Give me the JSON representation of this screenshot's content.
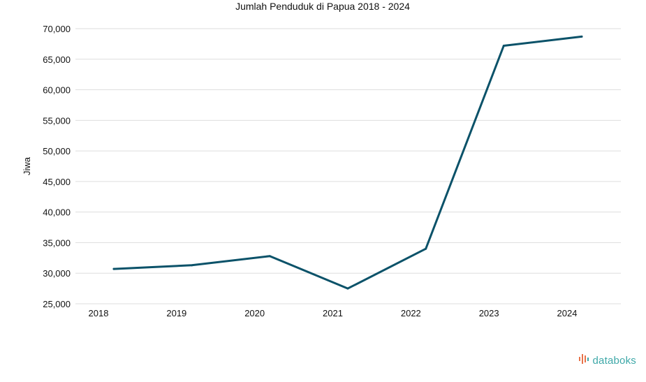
{
  "chart_data": {
    "type": "line",
    "title": "Jumlah Penduduk di Papua 2018 - 2024",
    "xlabel": "",
    "ylabel": "Jiwa",
    "categories": [
      "2018",
      "2019",
      "2020",
      "2021",
      "2022",
      "2023",
      "2024"
    ],
    "series": [
      {
        "values": [
          30700,
          31300,
          32800,
          27500,
          34000,
          67200,
          68700
        ],
        "color": "#0b5269"
      }
    ],
    "ylim": [
      25000,
      70000
    ],
    "yticks": [
      25000,
      30000,
      35000,
      40000,
      45000,
      50000,
      55000,
      60000,
      65000,
      70000
    ],
    "ytick_labels": [
      "25,000",
      "30,000",
      "35,000",
      "40,000",
      "45,000",
      "50,000",
      "55,000",
      "60,000",
      "65,000",
      "70,000"
    ],
    "grid": true,
    "legend": "none"
  },
  "brand": {
    "name": "databoks",
    "icon": "databoks-logo-icon",
    "colors": [
      "#e8734a",
      "#3ea8a8"
    ]
  }
}
